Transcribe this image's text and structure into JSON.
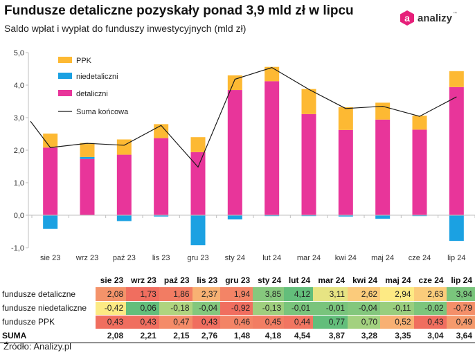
{
  "title": "Fundusze detaliczne pozyskały ponad 3,9 mld zł w lipcu",
  "subtitle": "Saldo wpłat i wypłat do funduszy inwestycyjnych (mld zł)",
  "logo": {
    "mark": "a",
    "text": "analizy",
    "tm": "™"
  },
  "source": "Źródło: Analizy.pl",
  "colors": {
    "ppk": "#fdb933",
    "niedetaliczni": "#1ba1e2",
    "detaliczni": "#e8359a",
    "line": "#1a1a1a"
  },
  "chart_data": {
    "type": "bar",
    "stacked": true,
    "categories": [
      "sie 23",
      "wrz 23",
      "paź 23",
      "lis 23",
      "gru 23",
      "sty 24",
      "lut 24",
      "mar 24",
      "kwi 24",
      "maj 24",
      "cze 24",
      "lip 24"
    ],
    "series": [
      {
        "name": "detaliczni",
        "values": [
          2.08,
          1.73,
          1.86,
          2.37,
          1.94,
          3.85,
          4.12,
          3.11,
          2.62,
          2.94,
          2.63,
          3.94
        ]
      },
      {
        "name": "niedetaliczni",
        "values": [
          -0.42,
          0.06,
          -0.18,
          -0.04,
          -0.92,
          -0.13,
          -0.01,
          -0.01,
          -0.04,
          -0.11,
          -0.02,
          -0.79
        ]
      },
      {
        "name": "PPK",
        "values": [
          0.43,
          0.43,
          0.47,
          0.43,
          0.46,
          0.45,
          0.44,
          0.77,
          0.7,
          0.52,
          0.43,
          0.49
        ]
      }
    ],
    "line": {
      "name": "Suma końcowa",
      "values": [
        2.08,
        2.21,
        2.15,
        2.76,
        1.48,
        4.18,
        4.54,
        3.87,
        3.28,
        3.35,
        3.04,
        3.64
      ]
    },
    "yticks": [
      "5,0",
      "4,0",
      "3,0",
      "2,0",
      "1,0",
      "0,0",
      "-1,0"
    ],
    "ylim": [
      -1,
      5
    ],
    "legend": [
      "PPK",
      "niedetaliczni",
      "detaliczni",
      "Suma końcowa"
    ],
    "legend_position": "top-left"
  },
  "table": {
    "headers": [
      "sie 23",
      "wrz 23",
      "paź 23",
      "lis 23",
      "gru 23",
      "sty 24",
      "lut 24",
      "mar 24",
      "kwi 24",
      "maj 24",
      "cze 24",
      "lip 24"
    ],
    "rows": [
      {
        "label": "fundusze detaliczne",
        "values": [
          "2,08",
          "1,73",
          "1,86",
          "2,37",
          "1,94",
          "3,85",
          "4,12",
          "3,11",
          "2,62",
          "2,94",
          "2,63",
          "3,94"
        ]
      },
      {
        "label": "fundusze niedetaliczne",
        "values": [
          "-0,42",
          "0,06",
          "-0,18",
          "-0,04",
          "-0,92",
          "-0,13",
          "-0,01",
          "-0,01",
          "-0,04",
          "-0,11",
          "-0,02",
          "-0,79"
        ]
      },
      {
        "label": "fundusze PPK",
        "values": [
          "0,43",
          "0,43",
          "0,47",
          "0,43",
          "0,46",
          "0,45",
          "0,44",
          "0,77",
          "0,70",
          "0,52",
          "0,43",
          "0,49"
        ]
      },
      {
        "label": "SUMA",
        "values": [
          "2,08",
          "2,21",
          "2,15",
          "2,76",
          "1,48",
          "4,18",
          "4,54",
          "3,87",
          "3,28",
          "3,35",
          "3,04",
          "3,64"
        ]
      }
    ]
  }
}
